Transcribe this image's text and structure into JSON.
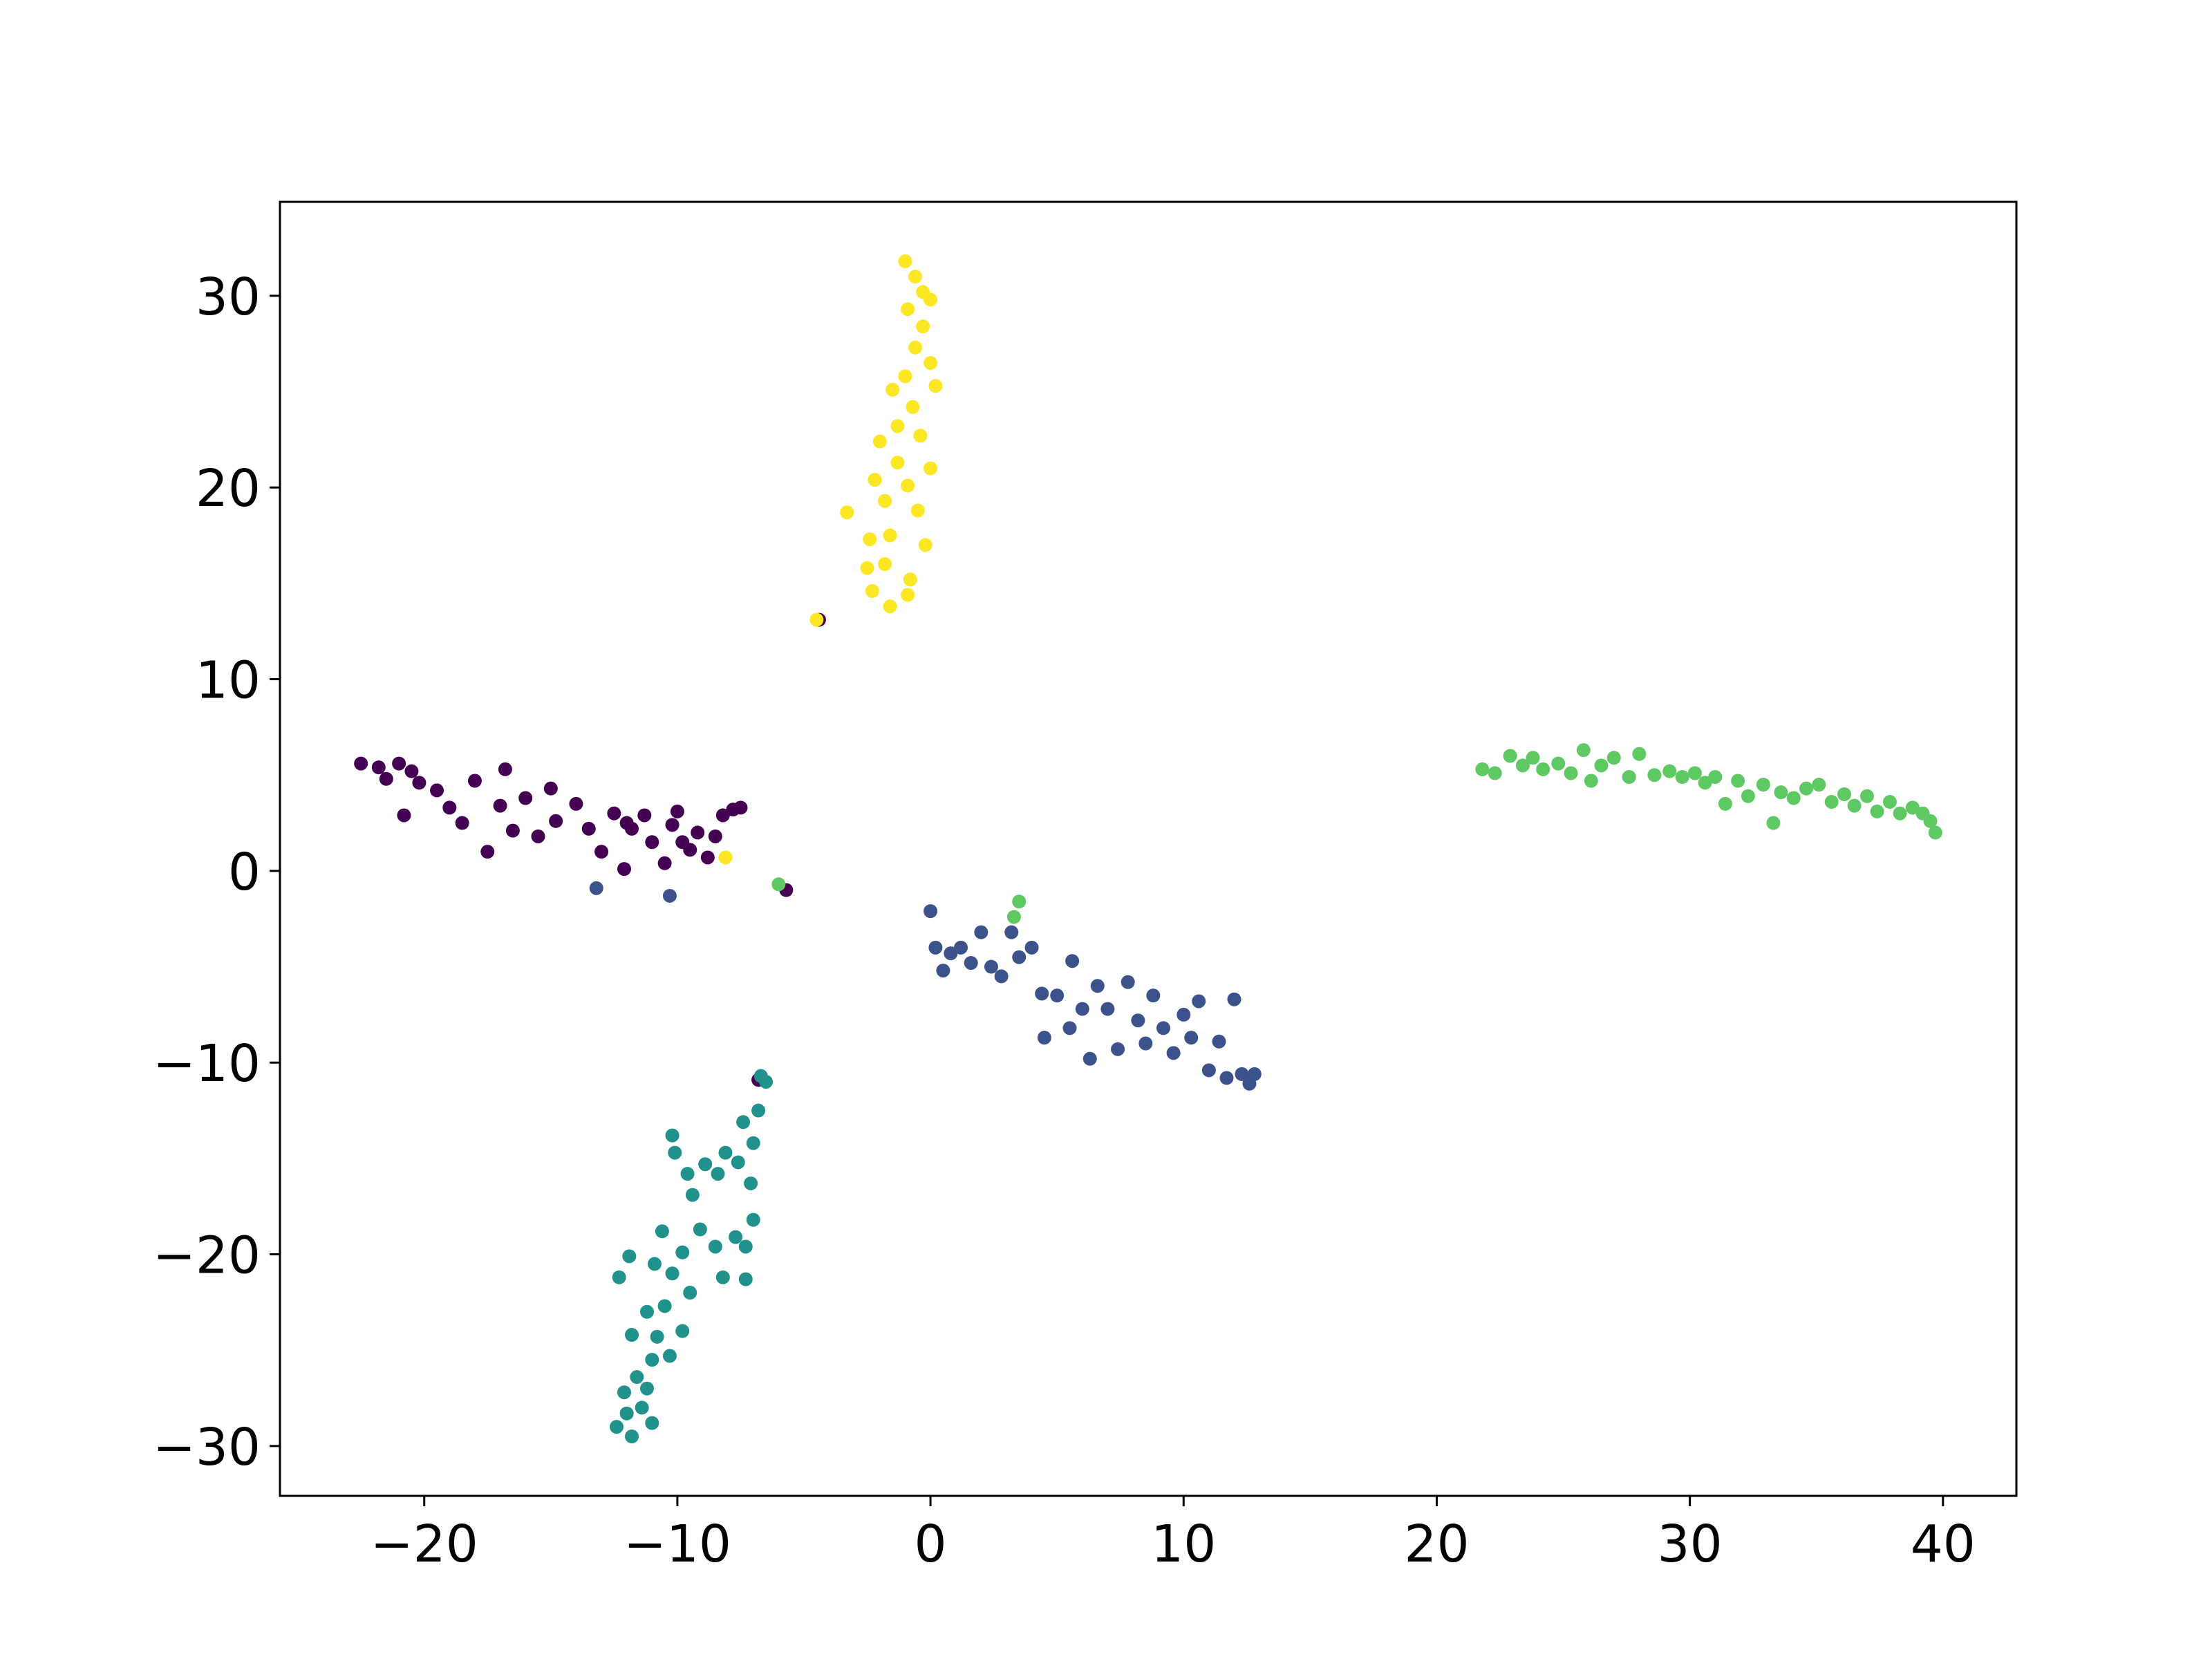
{
  "chart_data": {
    "type": "scatter",
    "xlim": [
      -25.7,
      42.9
    ],
    "ylim": [
      -32.6,
      34.9
    ],
    "xticks": [
      {
        "value": -20,
        "label": "−20"
      },
      {
        "value": -10,
        "label": "−10"
      },
      0,
      10,
      20,
      30,
      40
    ],
    "yticks": [
      {
        "value": -30,
        "label": "−30"
      },
      {
        "value": -20,
        "label": "−20"
      },
      {
        "value": -10,
        "label": "−10"
      },
      0,
      10,
      20,
      30
    ],
    "series": [
      {
        "color": "#440154",
        "x": [
          -22.5,
          -21.8,
          -21,
          -20.5,
          -20.2,
          -21.5,
          -20.8,
          -19.5,
          -19,
          -18.5,
          -18,
          -17.5,
          -17,
          -16.8,
          -16.5,
          -16,
          -15.5,
          -15,
          -14.8,
          -14,
          -13.5,
          -13,
          -12.5,
          -12.1,
          -11.8,
          -11.3,
          -11,
          -10.5,
          -10.2,
          -10,
          -9.5,
          -9.2,
          -8.8,
          -8.5,
          -8.2,
          -7.8,
          -7.5,
          -9.8,
          -12,
          -5.7,
          -4.4,
          -6.8
        ],
        "y": [
          5.6,
          5.4,
          5.6,
          5.2,
          4.6,
          4.8,
          2.9,
          4.2,
          3.3,
          2.5,
          4.7,
          1.0,
          3.4,
          5.3,
          2.1,
          3.8,
          1.8,
          4.3,
          2.6,
          3.5,
          2.2,
          1.0,
          3.0,
          0.1,
          2.2,
          2.9,
          1.5,
          0.4,
          2.4,
          3.1,
          1.1,
          2.0,
          0.7,
          1.8,
          2.9,
          3.2,
          3.3,
          1.5,
          2.5,
          -1.0,
          13.1,
          -10.9
        ]
      },
      {
        "color": "#3b528b",
        "x": [
          0,
          0.2,
          0.5,
          0.8,
          1.2,
          1.6,
          2,
          2.4,
          2.8,
          3.2,
          3.5,
          4,
          4.4,
          4.5,
          5,
          5.5,
          5.6,
          6,
          6.3,
          6.6,
          7,
          7.4,
          7.8,
          8.2,
          8.5,
          8.8,
          9.2,
          9.6,
          10,
          10.3,
          10.6,
          11,
          11.4,
          11.7,
          12,
          12.3,
          12.6,
          12.8,
          -13.2,
          -10.3
        ],
        "y": [
          -2.1,
          -4.0,
          -5.2,
          -4.3,
          -4.0,
          -4.8,
          -3.2,
          -5.0,
          -5.5,
          -3.2,
          -4.5,
          -4.0,
          -6.4,
          -8.7,
          -6.5,
          -8.2,
          -4.7,
          -7.2,
          -9.8,
          -6.0,
          -7.2,
          -9.3,
          -5.8,
          -7.8,
          -9.0,
          -6.5,
          -8.2,
          -9.5,
          -7.5,
          -8.7,
          -6.8,
          -10.4,
          -8.9,
          -10.8,
          -6.7,
          -10.6,
          -11.1,
          -10.6,
          -0.9,
          -1.3
        ]
      },
      {
        "color": "#21918c",
        "x": [
          -6.7,
          -6.5,
          -6.8,
          -7.4,
          -7.0,
          -7.6,
          -8.1,
          -8.4,
          -8.9,
          -9.6,
          -10.2,
          -10.1,
          -9.4,
          -7.1,
          -7.0,
          -7.3,
          -7.7,
          -8.5,
          -9.1,
          -9.8,
          -10.6,
          -10.9,
          -10.2,
          -7.3,
          -11.9,
          -12.3,
          -9.5,
          -10.5,
          -11.2,
          -9.8,
          -10.8,
          -11.8,
          -10.3,
          -11.0,
          -11.6,
          -11.2,
          -12.1,
          -11.4,
          -12.0,
          -11.0,
          -12.4,
          -11.8,
          -8.2
        ],
        "y": [
          -10.7,
          -11.0,
          -12.5,
          -13.1,
          -14.2,
          -15.2,
          -14.7,
          -15.8,
          -15.3,
          -15.8,
          -13.8,
          -14.7,
          -16.9,
          -16.3,
          -18.2,
          -19.6,
          -19.1,
          -19.6,
          -18.7,
          -19.9,
          -18.8,
          -20.5,
          -21.0,
          -21.3,
          -20.1,
          -21.2,
          -22.0,
          -22.7,
          -23.0,
          -24.0,
          -24.3,
          -24.2,
          -25.3,
          -25.5,
          -26.4,
          -27.0,
          -27.2,
          -28.0,
          -28.3,
          -28.8,
          -29.0,
          -29.5,
          -21.2
        ]
      },
      {
        "color": "#5ec962",
        "x": [
          21.8,
          22.3,
          22.9,
          23.4,
          23.8,
          24.2,
          24.8,
          25.3,
          25.8,
          26.1,
          26.5,
          27,
          27.6,
          28,
          28.6,
          29.2,
          29.7,
          30.2,
          30.6,
          31,
          31.4,
          31.9,
          32.3,
          32.9,
          33.3,
          33.6,
          34.1,
          34.6,
          35.1,
          35.6,
          36.1,
          36.5,
          37.0,
          37.4,
          37.9,
          38.3,
          38.8,
          39.2,
          39.5,
          39.7,
          -6,
          3.3,
          3.5
        ],
        "y": [
          5.3,
          5.1,
          6.0,
          5.5,
          5.9,
          5.3,
          5.6,
          5.1,
          6.3,
          4.7,
          5.5,
          5.9,
          4.9,
          6.1,
          5.0,
          5.2,
          4.9,
          5.1,
          4.6,
          4.9,
          3.5,
          4.7,
          3.9,
          4.5,
          2.5,
          4.1,
          3.8,
          4.3,
          4.5,
          3.6,
          4.0,
          3.4,
          3.9,
          3.1,
          3.6,
          3.0,
          3.3,
          3.0,
          2.6,
          2.0,
          -0.7,
          -2.4,
          -1.6
        ]
      },
      {
        "color": "#fde725",
        "x": [
          -1,
          -0.6,
          -0.3,
          0,
          -0.9,
          -0.3,
          -0.6,
          0,
          -1,
          -1.5,
          0.2,
          -0.7,
          -1.3,
          -2,
          -0.4,
          -1.3,
          0,
          -2.2,
          -0.9,
          -1.8,
          -0.5,
          -3.3,
          -2.4,
          -1.6,
          -0.2,
          -2.5,
          -1.8,
          -0.8,
          -2.3,
          -1.6,
          -0.9,
          -4.5,
          -8.1
        ],
        "y": [
          31.8,
          31.0,
          30.2,
          29.8,
          29.3,
          28.4,
          27.3,
          26.5,
          25.8,
          25.1,
          25.3,
          24.2,
          23.2,
          22.4,
          22.7,
          21.3,
          21.0,
          20.4,
          20.1,
          19.3,
          18.8,
          18.7,
          17.3,
          17.5,
          17.0,
          15.8,
          16.0,
          15.2,
          14.6,
          13.8,
          14.4,
          13.1,
          0.7
        ]
      }
    ]
  }
}
